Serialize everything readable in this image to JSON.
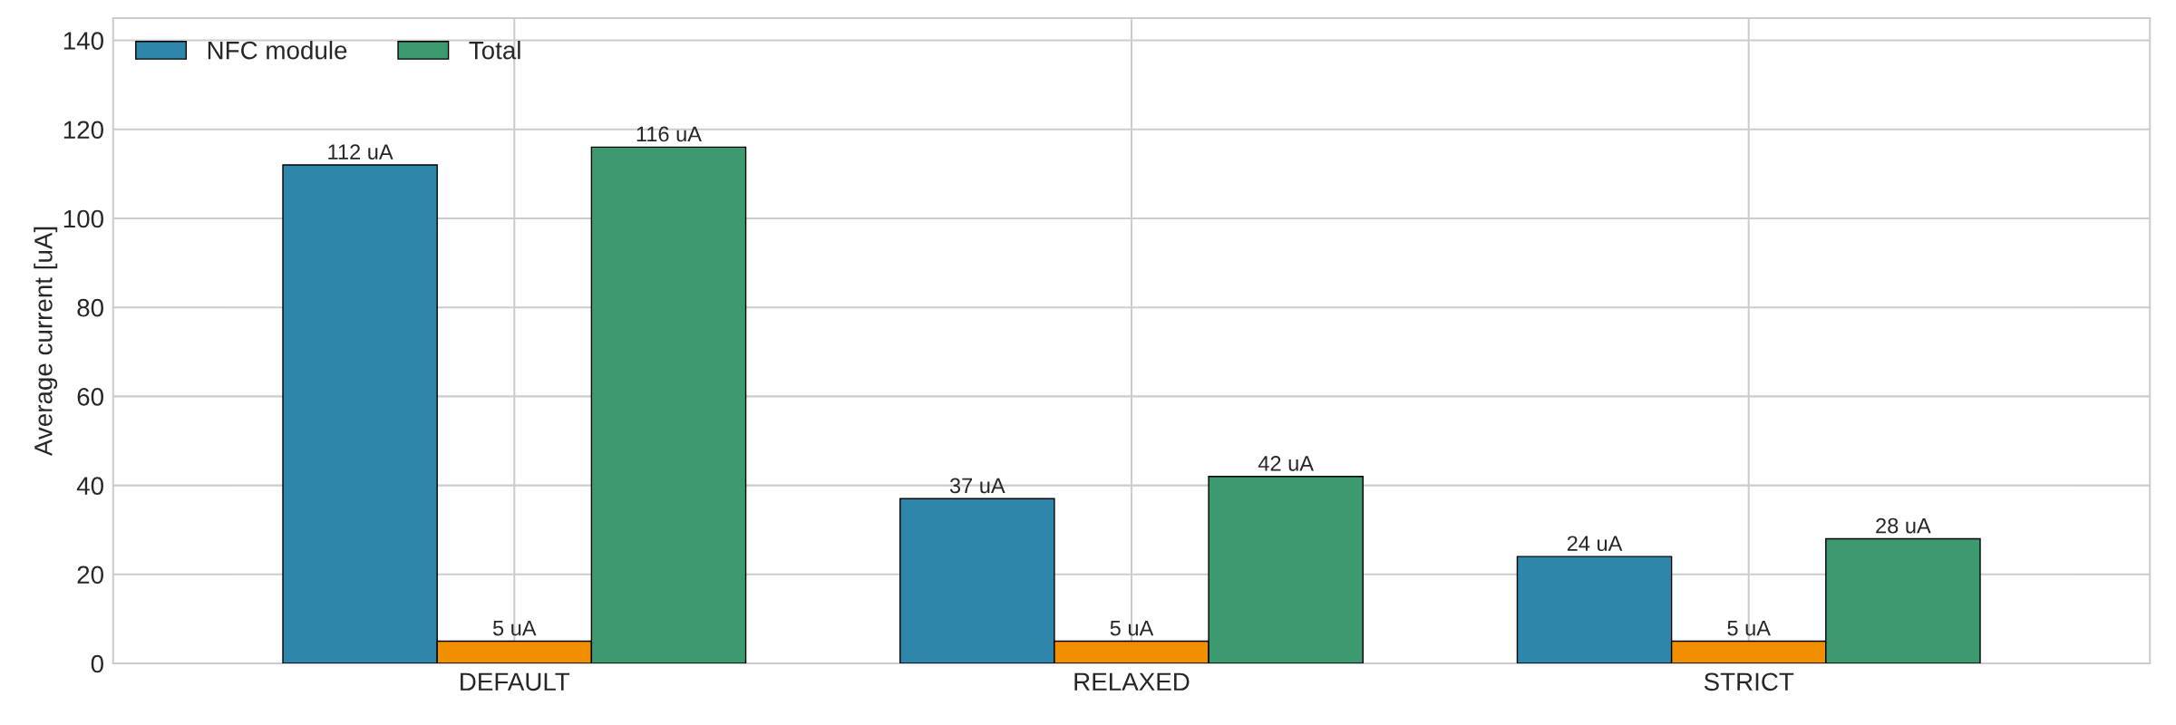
{
  "chart_data": {
    "type": "bar",
    "ylabel": "Average current [uA]",
    "categories": [
      "DEFAULT",
      "RELAXED",
      "STRICT"
    ],
    "series": [
      {
        "name": "NFC module",
        "color": "#2e86ab",
        "values": [
          112,
          37,
          24
        ],
        "value_labels": [
          "112 uA",
          "37 uA",
          "24 uA"
        ]
      },
      {
        "color": "#f18f01",
        "values": [
          5,
          5,
          5
        ],
        "value_labels": [
          "5 uA",
          "5 uA",
          "5 uA"
        ]
      },
      {
        "name": "Total",
        "color": "#3d9970",
        "values": [
          116,
          42,
          28
        ],
        "value_labels": [
          "116 uA",
          "42 uA",
          "28 uA"
        ]
      }
    ],
    "ylim": [
      0,
      145
    ],
    "yticks": [
      0,
      20,
      40,
      60,
      80,
      100,
      120,
      140
    ],
    "grid": true,
    "legend": "top left"
  }
}
